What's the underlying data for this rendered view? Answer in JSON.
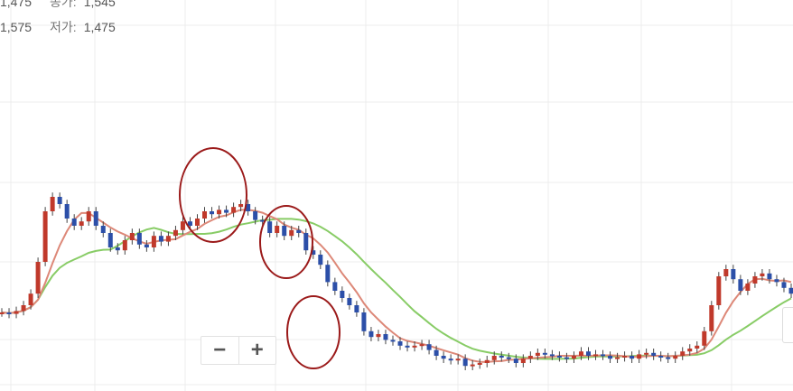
{
  "info": {
    "row1": {
      "left_value": "1,475",
      "label": "종가:",
      "value": "1,545"
    },
    "row2": {
      "left_value": "1,575",
      "label": "저가:",
      "value": "1,475"
    }
  },
  "zoom": {
    "minus": "−",
    "plus": "+"
  },
  "chart_data": {
    "type": "candlestick",
    "grid": true,
    "ylim": [
      1000,
      3000
    ],
    "series": [
      {
        "kind": "candles",
        "color_up": "#c0392b",
        "color_down": "#2c4fa8",
        "values": [
          1550,
          1540,
          1560,
          1600,
          1680,
          1900,
          2250,
          2350,
          2300,
          2200,
          2150,
          2180,
          2250,
          2150,
          2100,
          2000,
          1980,
          2050,
          2100,
          2020,
          2000,
          2080,
          2040,
          2080,
          2120,
          2180,
          2150,
          2200,
          2250,
          2230,
          2260,
          2240,
          2280,
          2300,
          2250,
          2190,
          2180,
          2100,
          2150,
          2080,
          2120,
          2100,
          1980,
          1950,
          1880,
          1760,
          1700,
          1650,
          1600,
          1550,
          1420,
          1380,
          1400,
          1360,
          1350,
          1320,
          1310,
          1320,
          1330,
          1290,
          1250,
          1230,
          1220,
          1230,
          1180,
          1190,
          1200,
          1220,
          1250,
          1240,
          1230,
          1200,
          1230,
          1250,
          1270,
          1260,
          1250,
          1240,
          1230,
          1250,
          1280,
          1250,
          1260,
          1250,
          1230,
          1240,
          1250,
          1230,
          1260,
          1270,
          1250,
          1240,
          1230,
          1250,
          1280,
          1300,
          1320,
          1420,
          1600,
          1800,
          1850,
          1780,
          1700,
          1750,
          1800,
          1820,
          1780,
          1760,
          1720,
          1680
        ]
      },
      {
        "kind": "line",
        "color": "#dd8878",
        "name": ""
      },
      {
        "kind": "line",
        "color": "#88cc66",
        "name": ""
      }
    ],
    "annotations": [
      {
        "type": "ellipse",
        "color": "#9b1a1a"
      },
      {
        "type": "ellipse",
        "color": "#9b1a1a"
      },
      {
        "type": "ellipse",
        "color": "#9b1a1a"
      }
    ]
  }
}
